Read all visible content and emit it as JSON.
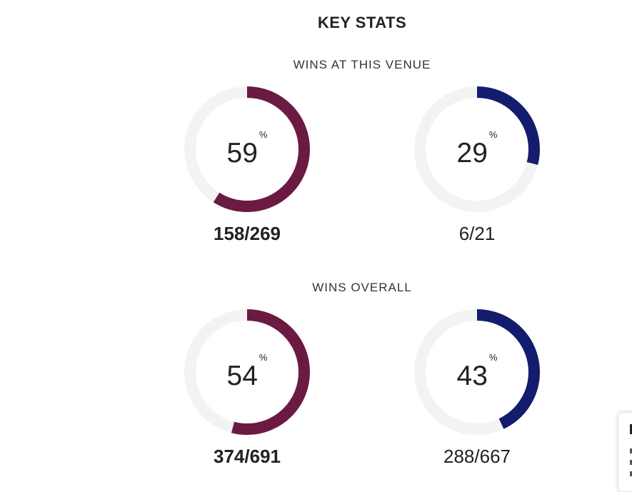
{
  "title": "KEY STATS",
  "colors": {
    "home": "#6b1a42",
    "away": "#141c6e",
    "track": "#f3f3f3"
  },
  "sections": [
    {
      "heading": "WINS AT THIS VENUE",
      "home": {
        "percent": "59",
        "fraction": "158/269"
      },
      "away": {
        "percent": "29",
        "fraction": "6/21"
      }
    },
    {
      "heading": "WINS OVERALL",
      "home": {
        "percent": "54",
        "fraction": "374/691"
      },
      "away": {
        "percent": "43",
        "fraction": "288/667"
      }
    }
  ],
  "percent_symbol": "%"
}
